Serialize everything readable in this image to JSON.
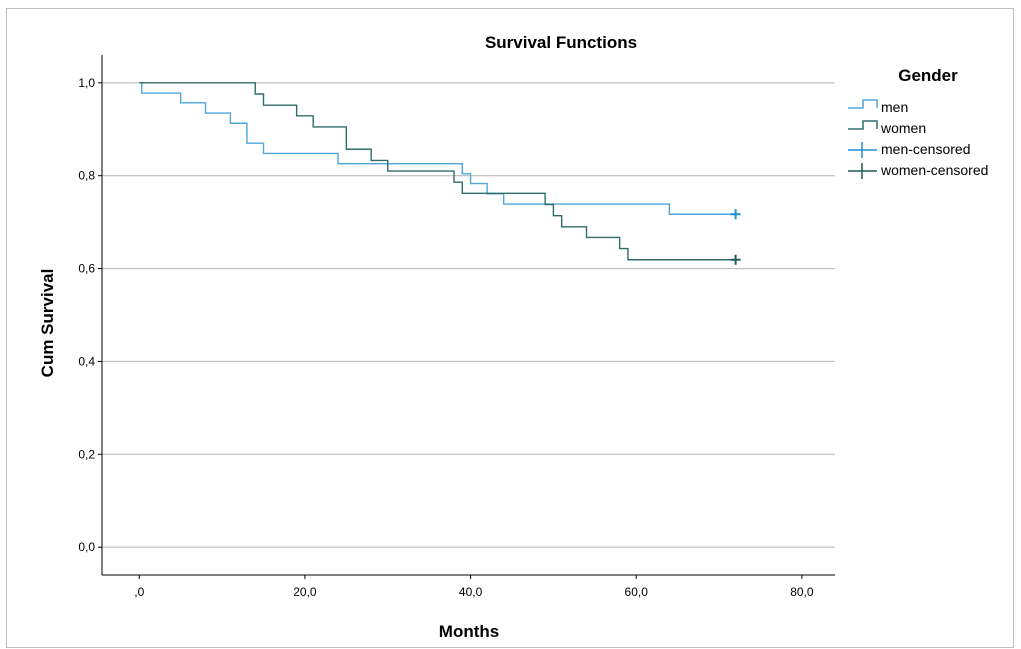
{
  "chart_data": {
    "type": "line",
    "title": "Survival Functions",
    "xlabel": "Months",
    "ylabel": "Cum Survival",
    "xlim": [
      -4.5,
      84
    ],
    "ylim": [
      -0.06,
      1.06
    ],
    "xticks": [
      0,
      20,
      40,
      60,
      80
    ],
    "xtick_labels": [
      ",0",
      "20,0",
      "40,0",
      "60,0",
      "80,0"
    ],
    "yticks": [
      0,
      0.2,
      0.4,
      0.6,
      0.8,
      1.0
    ],
    "ytick_labels": [
      "0,0",
      "0,2",
      "0,4",
      "0,6",
      "0,8",
      "1,0"
    ],
    "grid": "horizontal",
    "legend": {
      "title": "Gender",
      "position": "right",
      "entries": [
        "men",
        "women",
        "men-censored",
        "women-censored"
      ]
    },
    "colors": {
      "men": "#4ea6dc",
      "women": "#2e6e6a",
      "men_censored": "#1f8fd6",
      "women_censored": "#1f5c57",
      "grid": "#b4b4b4"
    },
    "series": [
      {
        "name": "men",
        "steps": [
          [
            0,
            1.0
          ],
          [
            0.3,
            0.978
          ],
          [
            5,
            0.957
          ],
          [
            8,
            0.935
          ],
          [
            11,
            0.913
          ],
          [
            13,
            0.87
          ],
          [
            15,
            0.848
          ],
          [
            24,
            0.826
          ],
          [
            39,
            0.804
          ],
          [
            40,
            0.783
          ],
          [
            42,
            0.761
          ],
          [
            44,
            0.739
          ],
          [
            64,
            0.717
          ],
          [
            72,
            0.717
          ]
        ],
        "censored": [
          [
            72,
            0.717
          ]
        ]
      },
      {
        "name": "women",
        "steps": [
          [
            0,
            1.0
          ],
          [
            14,
            0.976
          ],
          [
            15,
            0.952
          ],
          [
            19,
            0.929
          ],
          [
            21,
            0.905
          ],
          [
            25,
            0.857
          ],
          [
            28,
            0.833
          ],
          [
            30,
            0.81
          ],
          [
            38,
            0.786
          ],
          [
            39,
            0.762
          ],
          [
            49,
            0.738
          ],
          [
            50,
            0.714
          ],
          [
            51,
            0.69
          ],
          [
            54,
            0.667
          ],
          [
            58,
            0.643
          ],
          [
            59,
            0.619
          ],
          [
            72,
            0.619
          ]
        ],
        "censored": [
          [
            72,
            0.619
          ]
        ]
      }
    ]
  }
}
